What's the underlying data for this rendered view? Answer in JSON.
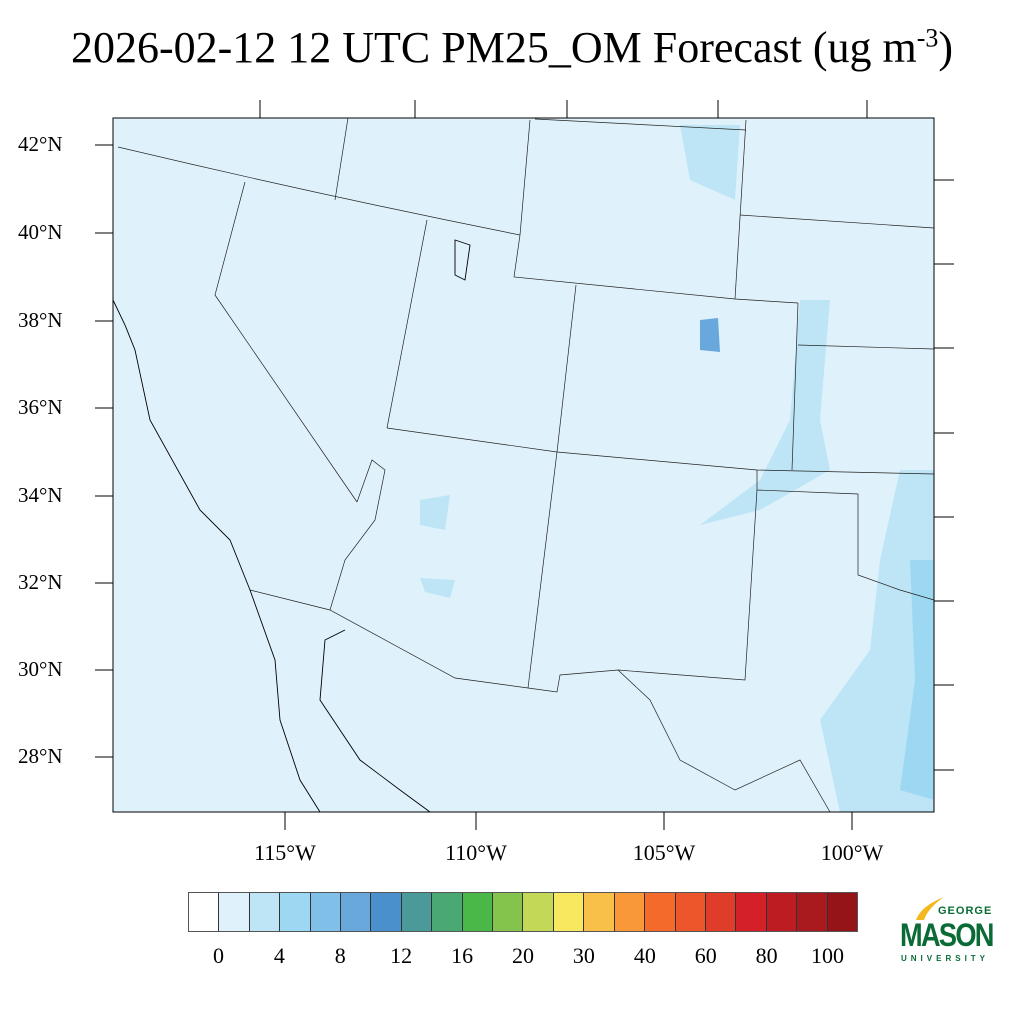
{
  "title": {
    "main": "2026-02-12 12 UTC PM25_OM Forecast (ug m",
    "sup": "-3",
    "end": ")"
  },
  "map": {
    "lat_labels": [
      "42°N",
      "40°N",
      "38°N",
      "36°N",
      "34°N",
      "32°N",
      "30°N",
      "28°N"
    ],
    "lon_labels": [
      "115°W",
      "110°W",
      "105°W",
      "100°W"
    ],
    "background_color": "#dff2fb"
  },
  "colorbar": {
    "colors": [
      "#ffffff",
      "#dff2fb",
      "#bde5f6",
      "#9dd8f3",
      "#80c0e8",
      "#68a8dc",
      "#4a90cc",
      "#4a9a9a",
      "#4aa874",
      "#4ab848",
      "#84c44c",
      "#c4d858",
      "#f8e860",
      "#f8c048",
      "#f89838",
      "#f46a2a",
      "#ec562a",
      "#e03c2a",
      "#d42028",
      "#bc1c22",
      "#a81a1e",
      "#941418"
    ],
    "labels": [
      "0",
      "4",
      "8",
      "12",
      "16",
      "20",
      "30",
      "40",
      "60",
      "80",
      "100"
    ]
  },
  "logo": {
    "line1": "GEORGE",
    "line2": "MASON",
    "line3": "UNIVERSITY"
  }
}
